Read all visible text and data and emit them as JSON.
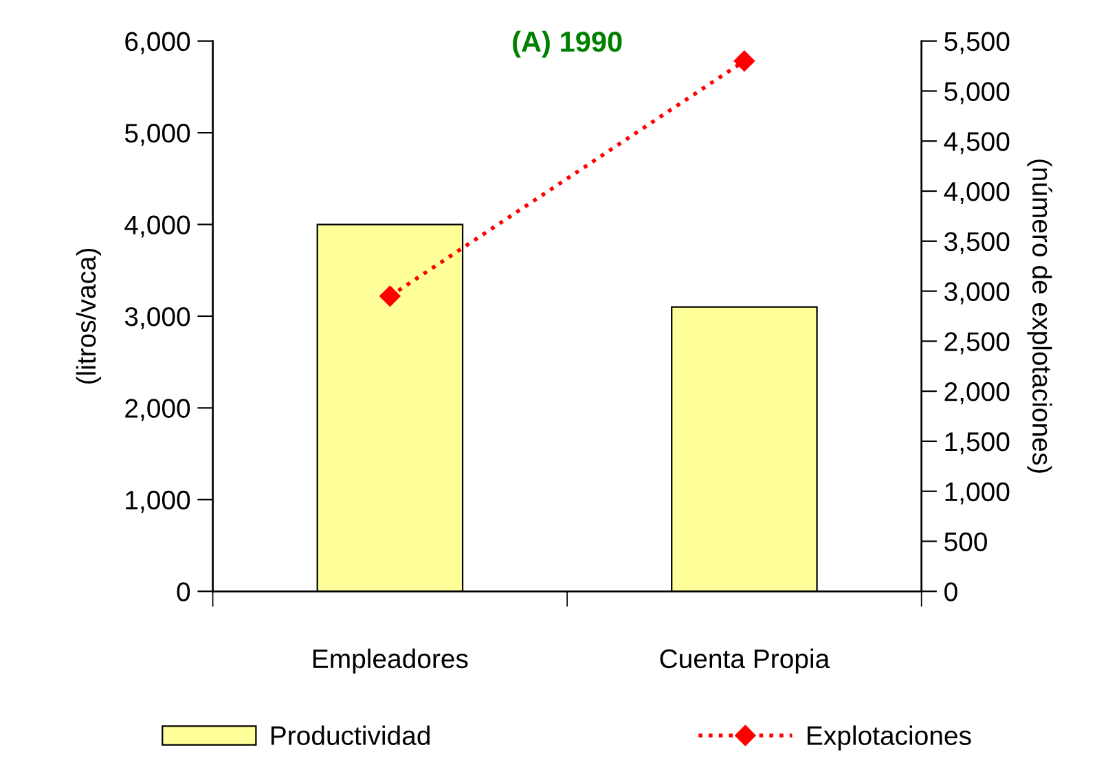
{
  "chart_data": {
    "type": "bar",
    "title": "(A) 1990",
    "ylabel": "(litros/vaca)",
    "y2label": "(número de explotaciones)",
    "categories": [
      "Empleadores",
      "Cuenta Propia"
    ],
    "series": [
      {
        "name": "Productividad",
        "color": "#ffff99",
        "values": [
          4000,
          3100
        ]
      },
      {
        "name": "Explotaciones",
        "type": "line",
        "axis": "y2",
        "color": "#ff0000",
        "marker": "diamond",
        "line_style": "dotted",
        "values": [
          2950,
          5300
        ]
      }
    ],
    "ylim": [
      0,
      6000
    ],
    "yticks": [
      {
        "value": 0,
        "label": "0"
      },
      {
        "value": 1000,
        "label": "1,000"
      },
      {
        "value": 2000,
        "label": "2,000"
      },
      {
        "value": 3000,
        "label": "3,000"
      },
      {
        "value": 4000,
        "label": "4,000"
      },
      {
        "value": 5000,
        "label": "5,000"
      },
      {
        "value": 6000,
        "label": "6,000"
      }
    ],
    "y2lim": [
      0,
      5500
    ],
    "y2ticks": [
      0,
      500,
      {
        "value": 1000,
        "label": "1,000"
      },
      {
        "value": 1500,
        "label": "1,500"
      },
      {
        "value": 2000,
        "label": "2,000"
      },
      {
        "value": 2500,
        "label": "2,500"
      },
      {
        "value": 3000,
        "label": "3,000"
      },
      {
        "value": 3500,
        "label": "3,500"
      },
      {
        "value": 4000,
        "label": "4,000"
      },
      {
        "value": 4500,
        "label": "4,500"
      },
      {
        "value": 5000,
        "label": "5,000"
      },
      {
        "value": 5500,
        "label": "5,500"
      }
    ],
    "grid": false,
    "legend": "bottom"
  }
}
